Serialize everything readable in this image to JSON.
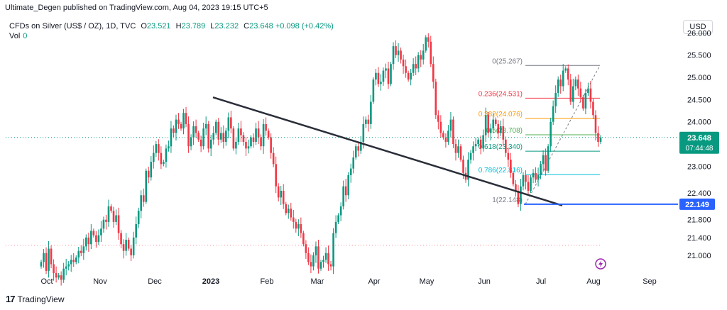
{
  "header": {
    "published": "Ultimate_Degen published on TradingView.com, Aug 04, 2023 19:15 UTC+5",
    "symbol": "CFDs on Silver (US$ / OZ), 1D, TVC",
    "o_label": "O",
    "o_value": "23.521",
    "h_label": "H",
    "h_value": "23.789",
    "l_label": "L",
    "l_value": "23.232",
    "c_label": "C",
    "c_value": "23.648",
    "change": "+0.098 (+0.42%)",
    "vol_label": "Vol",
    "vol_value": "0"
  },
  "currency_button": "USD",
  "footer": {
    "brand": "TradingView",
    "brand_mark": "17"
  },
  "colors": {
    "up": "#089981",
    "down": "#f23645",
    "trendline": "#2a2e39",
    "support": "#2962ff",
    "fib_0": "#787b86",
    "fib_236": "#f23645",
    "fib_382": "#ff9800",
    "fib_5": "#4caf50",
    "fib_618": "#089981",
    "fib_786": "#00bcd4",
    "fib_1": "#787b86",
    "grid_text": "#131722",
    "price_badge": "#089981",
    "support_badge": "#2962ff"
  },
  "chart_data": {
    "type": "candlestick",
    "ylim": [
      20.6,
      26.1
    ],
    "y_ticks": [
      "26.000",
      "25.500",
      "25.000",
      "24.500",
      "24.000",
      "23.000",
      "22.400",
      "21.800",
      "21.400",
      "21.000"
    ],
    "x_ticks": [
      "Oct",
      "Nov",
      "Dec",
      "2023",
      "Feb",
      "Mar",
      "Apr",
      "May",
      "Jun",
      "Jul",
      "Aug",
      "Sep"
    ],
    "last_price": "23.648",
    "countdown": "07:44:48",
    "support_level": "22.149",
    "fib_levels": [
      {
        "label": "0(25.267)",
        "value": 25.267,
        "key": "fib_0"
      },
      {
        "label": "0.236(24.531)",
        "value": 24.531,
        "key": "fib_236"
      },
      {
        "label": "0.382(24.076)",
        "value": 24.076,
        "key": "fib_382"
      },
      {
        "label": "0.5(23.708)",
        "value": 23.708,
        "key": "fib_5"
      },
      {
        "label": "0.618(23.340)",
        "value": 23.34,
        "key": "fib_618"
      },
      {
        "label": "0.786(22.816)",
        "value": 22.816,
        "key": "fib_786"
      },
      {
        "label": "1(22.148)",
        "value": 22.148,
        "key": "fib_1"
      }
    ],
    "closes": [
      20.85,
      21.05,
      20.65,
      21.15,
      20.8,
      20.6,
      20.5,
      20.55,
      20.45,
      20.7,
      20.75,
      20.8,
      20.9,
      20.85,
      20.95,
      21.1,
      21.05,
      21.2,
      21.4,
      21.25,
      21.55,
      21.45,
      21.3,
      21.45,
      21.6,
      21.8,
      21.75,
      22.1,
      22.0,
      21.75,
      21.9,
      21.5,
      21.25,
      21.1,
      21.35,
      21.15,
      21.0,
      21.4,
      21.7,
      22.0,
      22.35,
      22.2,
      22.9,
      22.75,
      23.1,
      23.3,
      23.5,
      23.3,
      23.05,
      23.1,
      23.4,
      23.45,
      23.85,
      23.75,
      24.05,
      23.95,
      23.85,
      24.2,
      23.95,
      23.45,
      23.65,
      23.9,
      23.75,
      23.6,
      23.45,
      23.85,
      23.95,
      23.4,
      23.6,
      23.75,
      24.0,
      23.6,
      23.75,
      23.55,
      23.8,
      24.1,
      23.85,
      23.4,
      23.55,
      23.85,
      23.7,
      23.55,
      23.4,
      23.45,
      23.65,
      23.55,
      23.85,
      23.65,
      23.45,
      23.95,
      23.8,
      23.65,
      23.3,
      23.05,
      22.55,
      22.3,
      22.45,
      22.15,
      21.95,
      22.05,
      21.85,
      21.75,
      21.6,
      21.7,
      21.5,
      21.25,
      21.05,
      20.85,
      20.75,
      21.0,
      21.2,
      20.7,
      20.85,
      20.9,
      21.05,
      20.8,
      20.75,
      21.5,
      21.75,
      21.9,
      22.1,
      22.55,
      22.35,
      22.8,
      22.95,
      23.2,
      23.45,
      23.35,
      23.55,
      23.95,
      24.05,
      23.95,
      24.45,
      24.95,
      25.1,
      24.85,
      24.9,
      25.15,
      25.2,
      24.85,
      25.3,
      25.7,
      25.5,
      25.6,
      25.4,
      25.25,
      25.1,
      24.95,
      25.1,
      25.3,
      25.2,
      25.5,
      25.4,
      25.6,
      25.9,
      25.8,
      25.3,
      24.9,
      24.15,
      24.0,
      23.75,
      23.65,
      23.55,
      23.8,
      24.05,
      23.5,
      23.3,
      23.45,
      23.15,
      22.85,
      22.7,
      23.15,
      23.3,
      23.45,
      23.5,
      23.6,
      23.4,
      23.7,
      24.15,
      23.75,
      23.85,
      24.05,
      23.95,
      23.75,
      23.9,
      23.6,
      23.3,
      23.15,
      22.85,
      22.6,
      22.45,
      22.15,
      22.55,
      22.8,
      22.65,
      22.45,
      22.75,
      22.85,
      22.7,
      22.8,
      23.05,
      23.25,
      22.9,
      23.45,
      24.0,
      24.35,
      24.65,
      24.95,
      24.8,
      25.15,
      25.2,
      24.95,
      24.45,
      24.8,
      24.95,
      24.75,
      24.55,
      24.3,
      24.65,
      24.75,
      24.45,
      24.15,
      23.75,
      23.55,
      23.65
    ]
  }
}
